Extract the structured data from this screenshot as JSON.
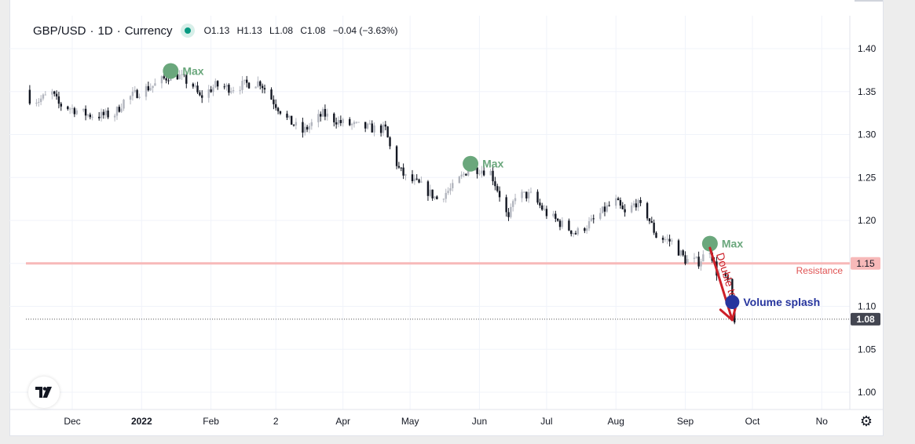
{
  "legend": {
    "symbol": "GBP/USD",
    "interval": "1D",
    "market": "Currency",
    "separator": "·",
    "open": "O1.13",
    "high": "H1.13",
    "low": "L1.08",
    "close": "C1.08",
    "change": "−0.04 (−3.63%)"
  },
  "colors": {
    "up_candle": "#b2b5be",
    "down_candle": "#131722",
    "max_marker": "#6aa77c",
    "resistance": "#f7b9b9",
    "resistance_label": "#e05252",
    "arrow": "#cc1f28",
    "volume_marker": "#27359e",
    "last_price_bg": "#434651"
  },
  "chart_data": {
    "type": "candlestick",
    "instrument": "GBP/USD",
    "interval": "1D",
    "y_axis": {
      "ticks": [
        "1.00",
        "1.05",
        "1.10",
        "1.15",
        "1.20",
        "1.25",
        "1.30",
        "1.35",
        "1.40"
      ],
      "min": 0.98,
      "max": 1.42
    },
    "x_axis": {
      "ticks": [
        {
          "label": "Dec",
          "date": "2021-12-01"
        },
        {
          "label": "2022",
          "date": "2022-01-01"
        },
        {
          "label": "Feb",
          "date": "2022-02-01"
        },
        {
          "label": "2",
          "date": "2022-03-02"
        },
        {
          "label": "Apr",
          "date": "2022-04-01"
        },
        {
          "label": "May",
          "date": "2022-05-01"
        },
        {
          "label": "Jun",
          "date": "2022-06-01"
        },
        {
          "label": "Jul",
          "date": "2022-07-01"
        },
        {
          "label": "Aug",
          "date": "2022-08-01"
        },
        {
          "label": "Sep",
          "date": "2022-09-01"
        },
        {
          "label": "Oct",
          "date": "2022-10-01"
        },
        {
          "label": "No",
          "date": "2022-11-01"
        }
      ],
      "start": "2021-11-12",
      "end": "2022-11-01"
    },
    "close_path": [
      [
        "2021-11-12",
        1.342
      ],
      [
        "2021-11-16",
        1.34
      ],
      [
        "2021-11-22",
        1.348
      ],
      [
        "2021-11-25",
        1.335
      ],
      [
        "2021-12-01",
        1.33
      ],
      [
        "2021-12-08",
        1.323
      ],
      [
        "2021-12-14",
        1.322
      ],
      [
        "2021-12-20",
        1.324
      ],
      [
        "2021-12-24",
        1.339
      ],
      [
        "2021-12-31",
        1.35
      ],
      [
        "2022-01-07",
        1.358
      ],
      [
        "2022-01-13",
        1.368
      ],
      [
        "2022-01-17",
        1.369
      ],
      [
        "2022-01-24",
        1.357
      ],
      [
        "2022-01-27",
        1.343
      ],
      [
        "2022-02-03",
        1.357
      ],
      [
        "2022-02-10",
        1.354
      ],
      [
        "2022-02-17",
        1.359
      ],
      [
        "2022-02-23",
        1.361
      ],
      [
        "2022-02-28",
        1.342
      ],
      [
        "2022-03-07",
        1.318
      ],
      [
        "2022-03-14",
        1.303
      ],
      [
        "2022-03-23",
        1.324
      ],
      [
        "2022-03-31",
        1.314
      ],
      [
        "2022-04-07",
        1.31
      ],
      [
        "2022-04-14",
        1.307
      ],
      [
        "2022-04-20",
        1.306
      ],
      [
        "2022-04-22",
        1.285
      ],
      [
        "2022-04-26",
        1.26
      ],
      [
        "2022-04-29",
        1.25
      ],
      [
        "2022-05-06",
        1.24
      ],
      [
        "2022-05-13",
        1.225
      ],
      [
        "2022-05-20",
        1.238
      ],
      [
        "2022-05-27",
        1.26
      ],
      [
        "2022-06-01",
        1.26
      ],
      [
        "2022-06-06",
        1.256
      ],
      [
        "2022-06-10",
        1.23
      ],
      [
        "2022-06-14",
        1.2
      ],
      [
        "2022-06-17",
        1.23
      ],
      [
        "2022-06-24",
        1.229
      ],
      [
        "2022-07-01",
        1.208
      ],
      [
        "2022-07-07",
        1.197
      ],
      [
        "2022-07-14",
        1.185
      ],
      [
        "2022-07-21",
        1.198
      ],
      [
        "2022-07-28",
        1.215
      ],
      [
        "2022-08-01",
        1.222
      ],
      [
        "2022-08-05",
        1.207
      ],
      [
        "2022-08-10",
        1.221
      ],
      [
        "2022-08-15",
        1.206
      ],
      [
        "2022-08-19",
        1.182
      ],
      [
        "2022-08-26",
        1.175
      ],
      [
        "2022-09-01",
        1.154
      ],
      [
        "2022-09-07",
        1.152
      ],
      [
        "2022-09-12",
        1.167
      ],
      [
        "2022-09-15",
        1.14
      ],
      [
        "2022-09-21",
        1.126
      ],
      [
        "2022-09-23",
        1.085
      ]
    ]
  },
  "annotations": {
    "max_label": "Max",
    "max_points": [
      {
        "date": "2022-01-14",
        "price": 1.374
      },
      {
        "date": "2022-05-28",
        "price": 1.266
      },
      {
        "date": "2022-09-12",
        "price": 1.173
      }
    ],
    "resistance_label": "Resistance",
    "resistance_price": 1.15,
    "resistance_price_label": "1.15",
    "last_price": 1.085,
    "last_price_label": "1.08",
    "volume_label": "Volume splash",
    "volume_point": {
      "date": "2022-09-22",
      "price": 1.105
    },
    "arrow_text": "Double top",
    "arrow_from": {
      "date": "2022-09-12",
      "price": 1.168
    },
    "arrow_to": {
      "date": "2022-09-22",
      "price": 1.084
    }
  }
}
